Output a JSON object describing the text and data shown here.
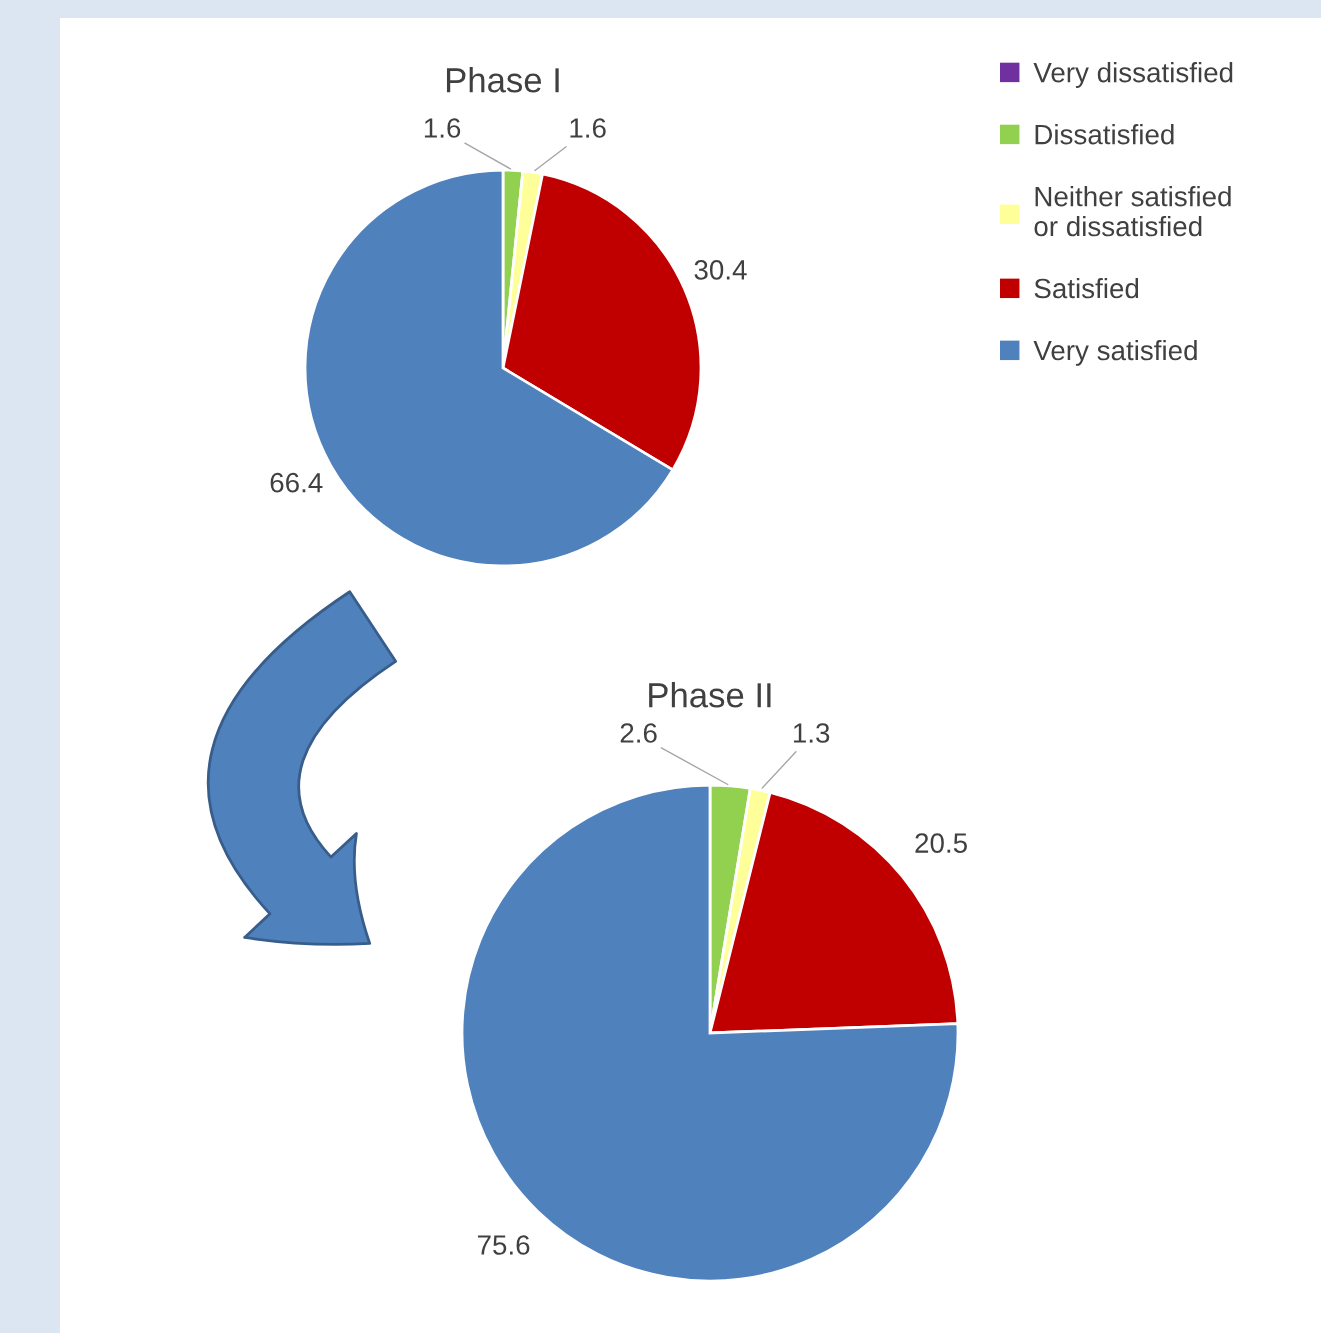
{
  "chart_data": [
    {
      "type": "pie",
      "title": "Phase I",
      "legend": "right",
      "categories": [
        "Very dissatisfied",
        "Dissatisfied",
        "Neither satisfied or dissatisfied",
        "Satisfied",
        "Very satisfied"
      ],
      "values": [
        0,
        1.6,
        1.6,
        30.4,
        66.4
      ],
      "value_labels": [
        null,
        "1.6",
        "1.6",
        "30.4",
        "66.4"
      ],
      "colors": [
        "#7030a0",
        "#92d050",
        "#ffff99",
        "#c00000",
        "#4f81bd"
      ]
    },
    {
      "type": "pie",
      "title": "Phase II",
      "categories": [
        null,
        null,
        null,
        null,
        null
      ],
      "values": [
        0,
        2.6,
        1.3,
        20.5,
        75.6
      ],
      "value_labels": [
        null,
        "2.6",
        "1.3",
        "20.5",
        "75.6"
      ],
      "colors": [
        "#7030a0",
        "#92d050",
        "#ffff99",
        "#c00000",
        "#4f81bd"
      ]
    }
  ]
}
